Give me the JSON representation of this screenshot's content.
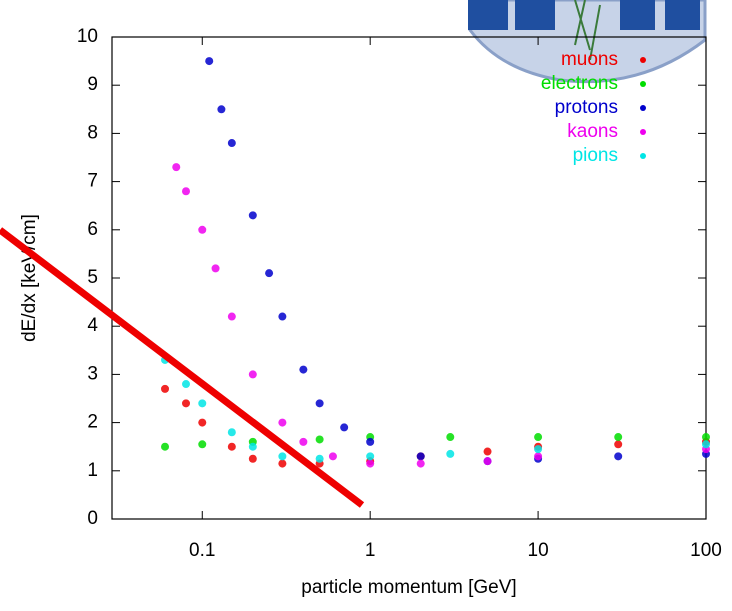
{
  "chart_data": {
    "type": "scatter",
    "x_label": "particle momentum [GeV]",
    "y_label": "dE/dx [keV/cm]",
    "xlim": [
      0.029,
      100
    ],
    "ylim": [
      0,
      10
    ],
    "log_x": true,
    "xticks": [
      0.1,
      1,
      10,
      100
    ],
    "yticks": [
      0,
      1,
      2,
      3,
      4,
      5,
      6,
      7,
      8,
      9,
      10
    ],
    "legend": "top-right",
    "series": [
      {
        "name": "muons",
        "color": "#ee0000",
        "x": [
          0.06,
          0.08,
          0.1,
          0.15,
          0.2,
          0.3,
          0.5,
          1,
          2,
          5,
          10,
          30,
          100
        ],
        "values": [
          2.7,
          2.4,
          2.0,
          1.5,
          1.25,
          1.15,
          1.15,
          1.2,
          1.3,
          1.4,
          1.5,
          1.55,
          1.6
        ]
      },
      {
        "name": "electrons",
        "color": "#00dd00",
        "x": [
          0.06,
          0.1,
          0.2,
          0.5,
          1,
          3,
          10,
          30,
          100
        ],
        "values": [
          1.5,
          1.55,
          1.6,
          1.65,
          1.7,
          1.7,
          1.7,
          1.7,
          1.7
        ]
      },
      {
        "name": "protons",
        "color": "#0000cc",
        "x": [
          0.11,
          0.13,
          0.15,
          0.2,
          0.25,
          0.3,
          0.4,
          0.5,
          0.7,
          1,
          2,
          5,
          10,
          30,
          100
        ],
        "values": [
          9.5,
          8.5,
          7.8,
          6.3,
          5.1,
          4.2,
          3.1,
          2.4,
          1.9,
          1.6,
          1.3,
          1.2,
          1.25,
          1.3,
          1.35
        ]
      },
      {
        "name": "kaons",
        "color": "#ee00ee",
        "x": [
          0.07,
          0.08,
          0.1,
          0.12,
          0.15,
          0.2,
          0.3,
          0.4,
          0.6,
          1,
          2,
          5,
          10,
          100
        ],
        "values": [
          7.3,
          6.8,
          6.0,
          5.2,
          4.2,
          3.0,
          2.0,
          1.6,
          1.3,
          1.15,
          1.15,
          1.2,
          1.3,
          1.45
        ]
      },
      {
        "name": "pions",
        "color": "#00e5e5",
        "x": [
          0.06,
          0.08,
          0.1,
          0.15,
          0.2,
          0.3,
          0.5,
          1,
          3,
          10,
          100
        ],
        "values": [
          3.3,
          2.8,
          2.4,
          1.8,
          1.5,
          1.3,
          1.25,
          1.3,
          1.35,
          1.45,
          1.55
        ]
      }
    ]
  }
}
